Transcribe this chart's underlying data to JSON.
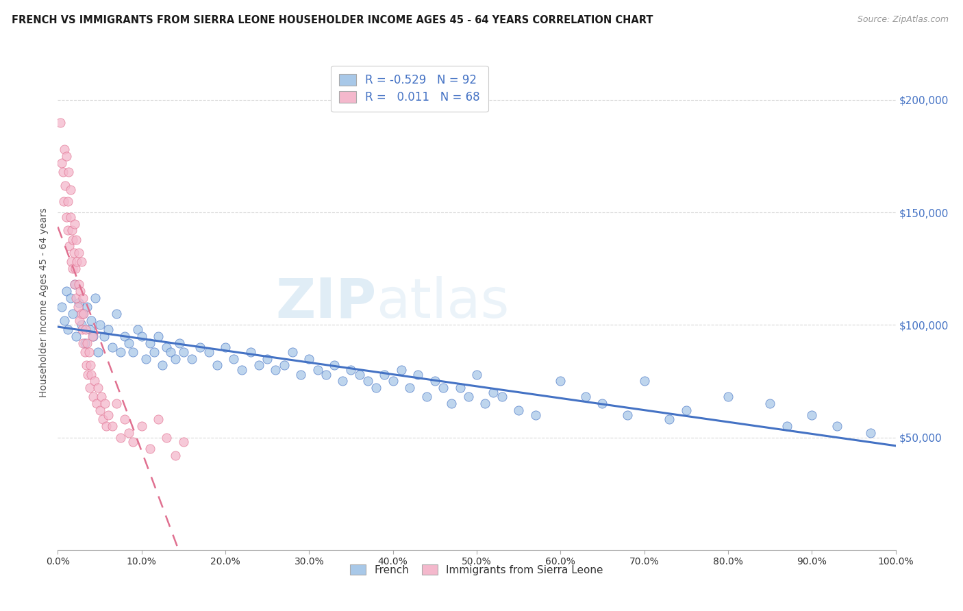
{
  "title": "FRENCH VS IMMIGRANTS FROM SIERRA LEONE HOUSEHOLDER INCOME AGES 45 - 64 YEARS CORRELATION CHART",
  "source": "Source: ZipAtlas.com",
  "ylabel": "Householder Income Ages 45 - 64 years",
  "ytick_labels": [
    "$50,000",
    "$100,000",
    "$150,000",
    "$200,000"
  ],
  "ytick_values": [
    50000,
    100000,
    150000,
    200000
  ],
  "ylim": [
    0,
    220000
  ],
  "xlim": [
    0.0,
    1.0
  ],
  "background_color": "#ffffff",
  "grid_color": "#d8d8d8",
  "french_color": "#a8c8e8",
  "french_line_color": "#4472c4",
  "sierra_leone_color": "#f4b8cc",
  "sierra_leone_line_color": "#e07090",
  "legend_french_R": "-0.529",
  "legend_french_N": "92",
  "legend_sierra_leone_R": "0.011",
  "legend_sierra_leone_N": "68",
  "watermark": "ZIPatlas",
  "french_scatter_x": [
    0.005,
    0.008,
    0.01,
    0.012,
    0.015,
    0.018,
    0.02,
    0.022,
    0.025,
    0.028,
    0.03,
    0.032,
    0.035,
    0.038,
    0.04,
    0.042,
    0.045,
    0.048,
    0.05,
    0.055,
    0.06,
    0.065,
    0.07,
    0.075,
    0.08,
    0.085,
    0.09,
    0.095,
    0.1,
    0.105,
    0.11,
    0.115,
    0.12,
    0.125,
    0.13,
    0.135,
    0.14,
    0.145,
    0.15,
    0.16,
    0.17,
    0.18,
    0.19,
    0.2,
    0.21,
    0.22,
    0.23,
    0.24,
    0.25,
    0.26,
    0.27,
    0.28,
    0.29,
    0.3,
    0.31,
    0.32,
    0.33,
    0.34,
    0.35,
    0.36,
    0.37,
    0.38,
    0.39,
    0.4,
    0.41,
    0.42,
    0.43,
    0.44,
    0.45,
    0.46,
    0.47,
    0.48,
    0.49,
    0.5,
    0.51,
    0.52,
    0.53,
    0.55,
    0.57,
    0.6,
    0.63,
    0.65,
    0.68,
    0.7,
    0.73,
    0.75,
    0.8,
    0.85,
    0.87,
    0.9,
    0.93,
    0.97
  ],
  "french_scatter_y": [
    108000,
    102000,
    115000,
    98000,
    112000,
    105000,
    118000,
    95000,
    110000,
    100000,
    105000,
    92000,
    108000,
    98000,
    102000,
    95000,
    112000,
    88000,
    100000,
    95000,
    98000,
    90000,
    105000,
    88000,
    95000,
    92000,
    88000,
    98000,
    95000,
    85000,
    92000,
    88000,
    95000,
    82000,
    90000,
    88000,
    85000,
    92000,
    88000,
    85000,
    90000,
    88000,
    82000,
    90000,
    85000,
    80000,
    88000,
    82000,
    85000,
    80000,
    82000,
    88000,
    78000,
    85000,
    80000,
    78000,
    82000,
    75000,
    80000,
    78000,
    75000,
    72000,
    78000,
    75000,
    80000,
    72000,
    78000,
    68000,
    75000,
    72000,
    65000,
    72000,
    68000,
    78000,
    65000,
    70000,
    68000,
    62000,
    60000,
    75000,
    68000,
    65000,
    60000,
    75000,
    58000,
    62000,
    68000,
    65000,
    55000,
    60000,
    55000,
    52000
  ],
  "sierra_leone_scatter_x": [
    0.003,
    0.005,
    0.006,
    0.007,
    0.008,
    0.009,
    0.01,
    0.01,
    0.012,
    0.012,
    0.013,
    0.014,
    0.015,
    0.015,
    0.016,
    0.017,
    0.018,
    0.018,
    0.019,
    0.02,
    0.02,
    0.021,
    0.022,
    0.022,
    0.023,
    0.024,
    0.025,
    0.025,
    0.026,
    0.027,
    0.028,
    0.028,
    0.029,
    0.03,
    0.03,
    0.031,
    0.032,
    0.033,
    0.034,
    0.035,
    0.036,
    0.037,
    0.038,
    0.039,
    0.04,
    0.041,
    0.042,
    0.044,
    0.046,
    0.048,
    0.05,
    0.052,
    0.054,
    0.056,
    0.058,
    0.06,
    0.065,
    0.07,
    0.075,
    0.08,
    0.085,
    0.09,
    0.1,
    0.11,
    0.12,
    0.13,
    0.14,
    0.15
  ],
  "sierra_leone_scatter_y": [
    190000,
    172000,
    168000,
    155000,
    178000,
    162000,
    148000,
    175000,
    155000,
    142000,
    168000,
    135000,
    148000,
    160000,
    128000,
    142000,
    138000,
    125000,
    132000,
    118000,
    145000,
    125000,
    138000,
    112000,
    128000,
    108000,
    118000,
    132000,
    102000,
    115000,
    105000,
    128000,
    98000,
    112000,
    92000,
    105000,
    88000,
    98000,
    82000,
    92000,
    78000,
    88000,
    72000,
    82000,
    78000,
    95000,
    68000,
    75000,
    65000,
    72000,
    62000,
    68000,
    58000,
    65000,
    55000,
    60000,
    55000,
    65000,
    50000,
    58000,
    52000,
    48000,
    55000,
    45000,
    58000,
    50000,
    42000,
    48000
  ],
  "french_line_x0": 0.0,
  "french_line_y0": 110000,
  "french_line_x1": 1.0,
  "french_line_y1": 50000,
  "sierra_line_x0": 0.0,
  "sierra_line_y0": 90000,
  "sierra_line_x1": 1.0,
  "sierra_line_y1": 130000
}
